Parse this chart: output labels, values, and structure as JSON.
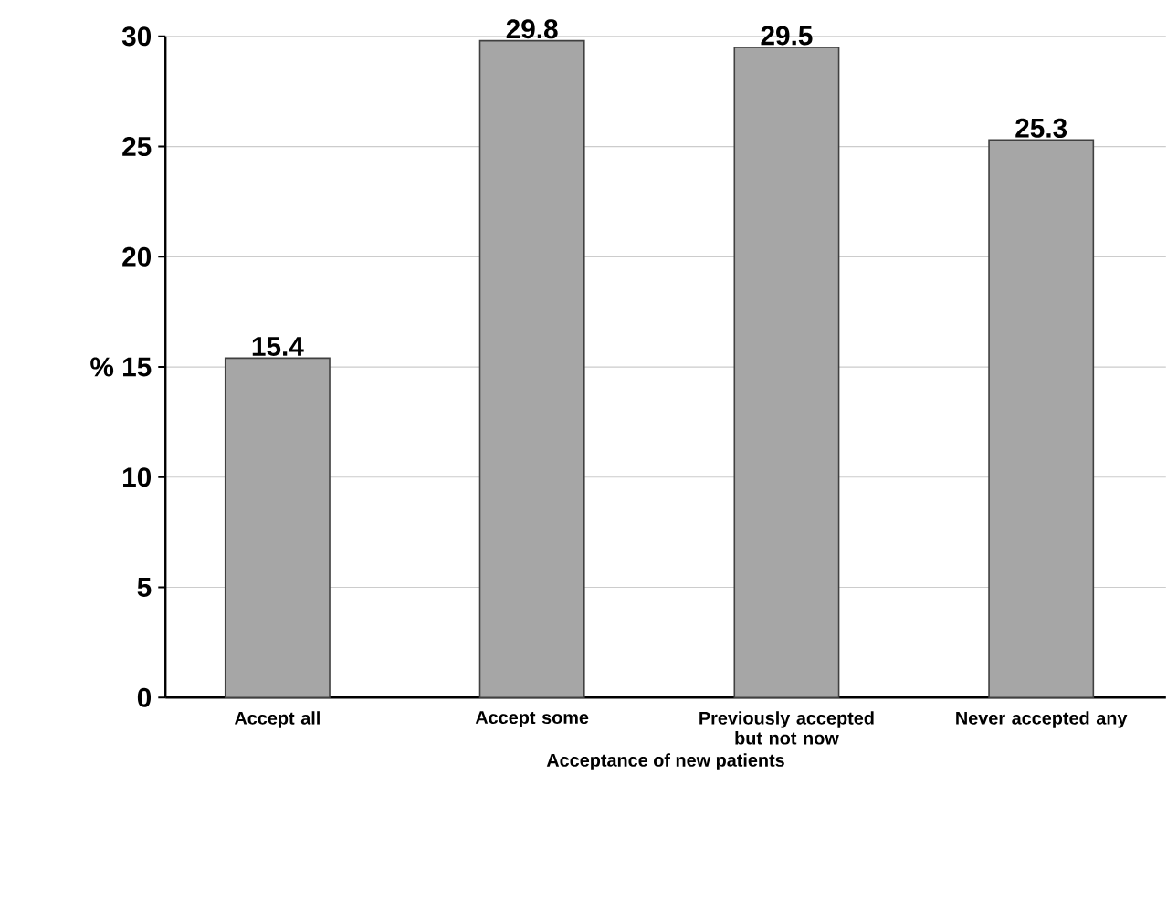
{
  "chart_data": {
    "type": "bar",
    "xlabel": "Acceptance of new patients",
    "ylabel": "%",
    "categories": [
      "Accept all",
      "Accept some",
      "Previously accepted but not now",
      "Never accepted any"
    ],
    "values": [
      15.4,
      29.8,
      29.5,
      25.3
    ],
    "color": "#a6a6a6",
    "ylim": [
      0,
      30
    ],
    "yticks": [
      0,
      5,
      10,
      15,
      20,
      25,
      30
    ],
    "grid": "y",
    "data_labels": true
  }
}
